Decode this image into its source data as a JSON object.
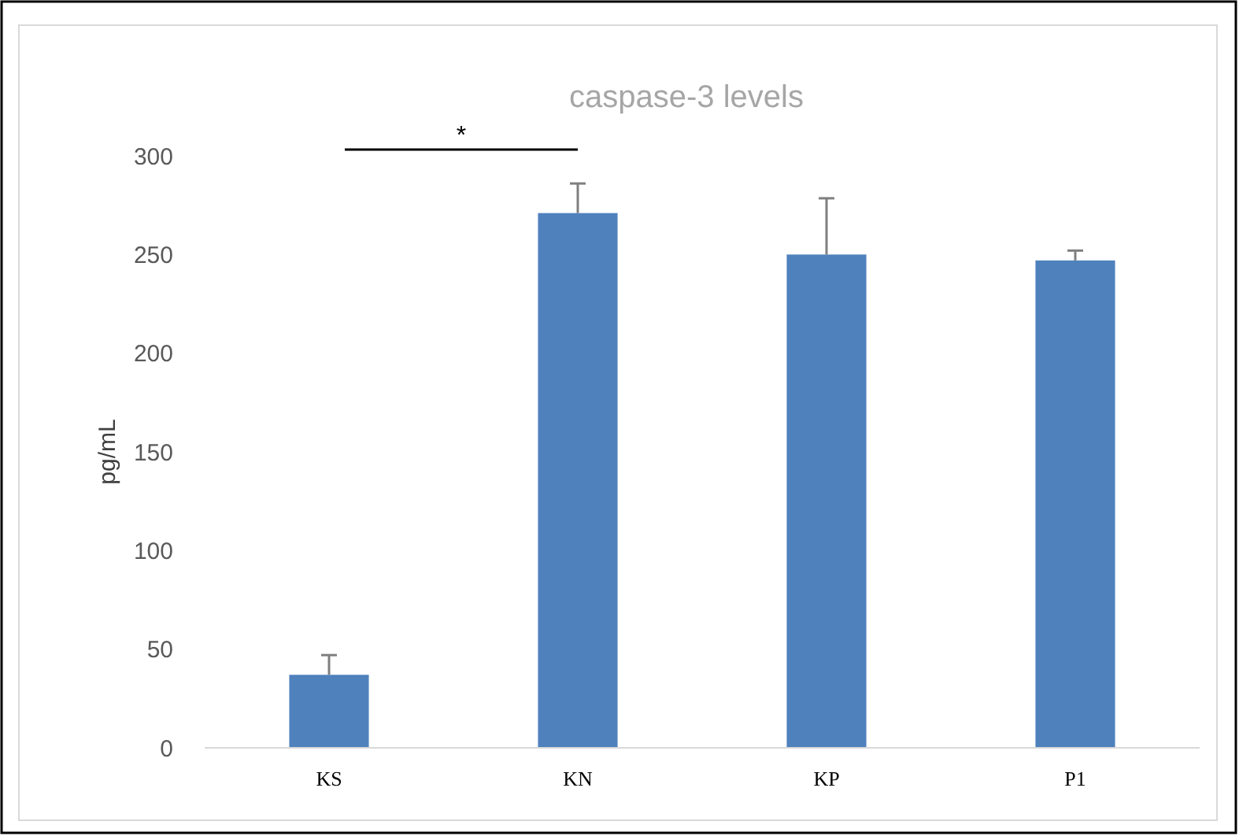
{
  "chart_data": {
    "type": "bar",
    "title": "caspase-3 levels",
    "ylabel": "pg/mL",
    "categories": [
      "KS",
      "KN",
      "KP",
      "P1"
    ],
    "values": [
      37,
      271,
      250,
      247
    ],
    "errors": [
      [
        37,
        47
      ],
      [
        271,
        286
      ],
      [
        250,
        278.5
      ],
      [
        247,
        252
      ]
    ],
    "color": "#4f81bd",
    "ylim": [
      0,
      300
    ],
    "yticks": [
      0,
      50,
      100,
      150,
      200,
      250,
      300
    ],
    "grid": false,
    "annotations": [
      "*"
    ]
  }
}
